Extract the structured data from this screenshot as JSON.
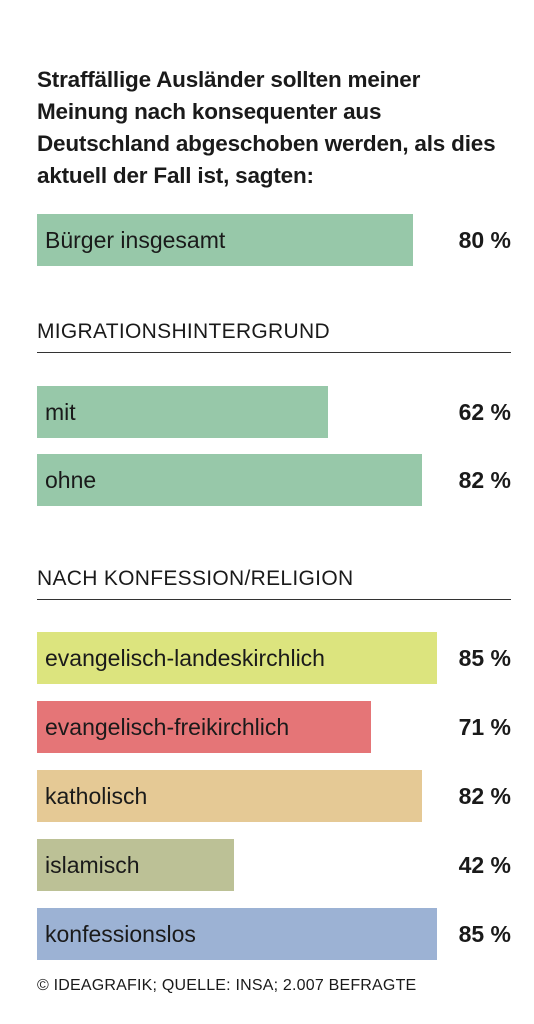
{
  "chart_data": {
    "type": "bar",
    "title": "Straffällige Ausländer sollten meiner Meinung nach konsequenter aus Deutschland abgeschoben werden, als dies aktuell der Fall ist, sagten:",
    "unit": "%",
    "groups": [
      {
        "heading": "",
        "bars": [
          {
            "label": "Bürger insgesamt",
            "value": 80,
            "display": "80 %",
            "color": "#97c8a9"
          }
        ]
      },
      {
        "heading": "MIGRATIONSHINTERGRUND",
        "bars": [
          {
            "label": "mit",
            "value": 62,
            "display": "62 %",
            "color": "#97c8a9"
          },
          {
            "label": "ohne",
            "value": 82,
            "display": "82 %",
            "color": "#97c8a9"
          }
        ]
      },
      {
        "heading": "NACH KONFESSION/RELIGION",
        "bars": [
          {
            "label": "evangelisch-landeskirchlich",
            "value": 85,
            "display": "85 %",
            "color": "#dce47e"
          },
          {
            "label": "evangelisch-freikirchlich",
            "value": 71,
            "display": "71 %",
            "color": "#e57577"
          },
          {
            "label": "katholisch",
            "value": 82,
            "display": "82 %",
            "color": "#e5c995"
          },
          {
            "label": "islamisch",
            "value": 42,
            "display": "42 %",
            "color": "#bcc196"
          },
          {
            "label": "konfessionslos",
            "value": 85,
            "display": "85 %",
            "color": "#9cb2d4"
          }
        ]
      }
    ]
  },
  "footer": "© IDEAGRAFIK; QUELLE: INSA; 2.007 BEFRAGTE"
}
